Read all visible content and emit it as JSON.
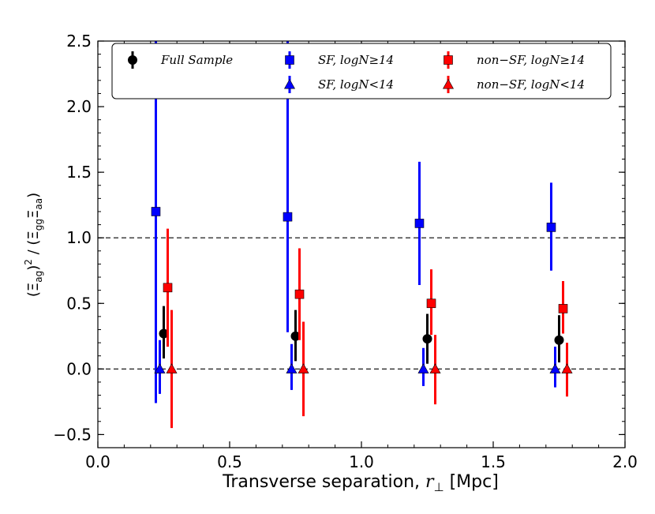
{
  "chart_data": {
    "type": "scatter",
    "title": "",
    "xlabel_text": "Transverse separation, ",
    "xlabel_var": "r",
    "xlabel_sub": "⊥",
    "xlabel_unit": " [Mpc]",
    "ylabel": "(Ξag)² / (ΞggΞaa)",
    "ylabel_parts": {
      "num_base": "(Ξ",
      "num_sub": "ag",
      "num_close": ")",
      "num_sup": "2",
      "den_open": " / (Ξ",
      "den_sub1": "gg",
      "den_mid": "Ξ",
      "den_sub2": "aa",
      "den_close": ")"
    },
    "xlim": [
      0.0,
      2.0
    ],
    "ylim": [
      -0.6,
      2.5
    ],
    "xticks": [
      0.0,
      0.5,
      1.0,
      1.5,
      2.0
    ],
    "xtick_labels": [
      "0.0",
      "0.5",
      "1.0",
      "1.5",
      "2.0"
    ],
    "yticks": [
      -0.5,
      0.0,
      0.5,
      1.0,
      1.5,
      2.0,
      2.5
    ],
    "ytick_labels": [
      "−0.5",
      "0.0",
      "0.5",
      "1.0",
      "1.5",
      "2.0",
      "2.5"
    ],
    "reference_lines": [
      0.0,
      1.0
    ],
    "legend_position": "top",
    "series": [
      {
        "name": "Full Sample",
        "color": "#000000",
        "marker": "circle",
        "x": [
          0.25,
          0.75,
          1.25,
          1.75
        ],
        "y": [
          0.27,
          0.25,
          0.23,
          0.22
        ],
        "yerr_low": [
          0.08,
          0.06,
          0.04,
          0.05
        ],
        "yerr_high": [
          0.48,
          0.45,
          0.42,
          0.41
        ]
      },
      {
        "name": "SF, logN≥14",
        "color": "#0000ff",
        "marker": "square",
        "x": [
          0.22,
          0.72,
          1.22,
          1.72
        ],
        "y": [
          1.2,
          1.16,
          1.11,
          1.08
        ],
        "yerr_low": [
          -0.26,
          0.28,
          0.64,
          0.75
        ],
        "yerr_high": [
          2.5,
          2.5,
          1.58,
          1.42
        ]
      },
      {
        "name": "SF, logN<14",
        "color": "#0000ff",
        "marker": "triangle",
        "x": [
          0.235,
          0.735,
          1.235,
          1.735
        ],
        "y": [
          0.0,
          0.0,
          0.0,
          0.0
        ],
        "yerr_low": [
          -0.19,
          -0.16,
          -0.13,
          -0.14
        ],
        "yerr_high": [
          0.22,
          0.19,
          0.16,
          0.17
        ]
      },
      {
        "name": "non−SF, logN≥14",
        "color": "#ff0000",
        "marker": "square",
        "x": [
          0.265,
          0.765,
          1.265,
          1.765
        ],
        "y": [
          0.62,
          0.57,
          0.5,
          0.46
        ],
        "yerr_low": [
          0.17,
          0.22,
          0.26,
          0.27
        ],
        "yerr_high": [
          1.07,
          0.92,
          0.76,
          0.67
        ]
      },
      {
        "name": "non−SF, logN<14",
        "color": "#ff0000",
        "marker": "triangle",
        "x": [
          0.28,
          0.78,
          1.28,
          1.78
        ],
        "y": [
          0.0,
          0.0,
          0.0,
          0.0
        ],
        "yerr_low": [
          -0.45,
          -0.36,
          -0.27,
          -0.21
        ],
        "yerr_high": [
          0.45,
          0.36,
          0.26,
          0.2
        ]
      }
    ]
  }
}
